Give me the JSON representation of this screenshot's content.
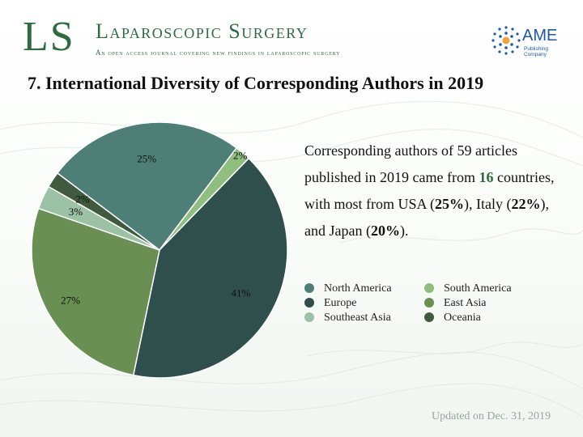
{
  "header": {
    "logo_text": "LS",
    "journal_title": "Laparoscopic Surgery",
    "journal_subtitle": "An open access journal covering new findings in laparoscopic surgery",
    "publisher_name": "AME",
    "publisher_subtitle": "Publishing Company"
  },
  "slide_title": "7. International Diversity of Corresponding Authors in 2019",
  "summary": {
    "p1": "Corresponding authors of 59 articles published in 2019 came from ",
    "countries": "16",
    "p2": " countries, with most from USA (",
    "usa": "25%",
    "p3": "), Italy (",
    "italy": "22%",
    "p4": "), and Japan (",
    "japan": "20%",
    "p5": ")."
  },
  "footer": "Updated on Dec. 31, 2019",
  "colors": {
    "brand_green": "#2e6b3f",
    "north_america": "#4e7f76",
    "south_america": "#8fbf7e",
    "europe": "#2f4f4c",
    "east_asia": "#6a8f52",
    "southeast_asia": "#9cc2a6",
    "oceania": "#3f5a3c"
  },
  "chart_data": {
    "type": "pie",
    "title": "",
    "slices": [
      {
        "label": "North America",
        "value": 25,
        "display": "25%",
        "color": "#4e7f76"
      },
      {
        "label": "South America",
        "value": 2,
        "display": "2%",
        "color": "#8fbf7e"
      },
      {
        "label": "Europe",
        "value": 41,
        "display": "41%",
        "color": "#2f4f4c"
      },
      {
        "label": "East Asia",
        "value": 27,
        "display": "27%",
        "color": "#6a8f52"
      },
      {
        "label": "Southeast Asia",
        "value": 3,
        "display": "3%",
        "color": "#9cc2a6"
      },
      {
        "label": "Oceania",
        "value": 2,
        "display": "2%",
        "color": "#3f5a3c"
      }
    ],
    "legend": [
      "North America",
      "South America",
      "Europe",
      "East Asia",
      "Southeast Asia",
      "Oceania"
    ],
    "legend_placement": "right"
  }
}
